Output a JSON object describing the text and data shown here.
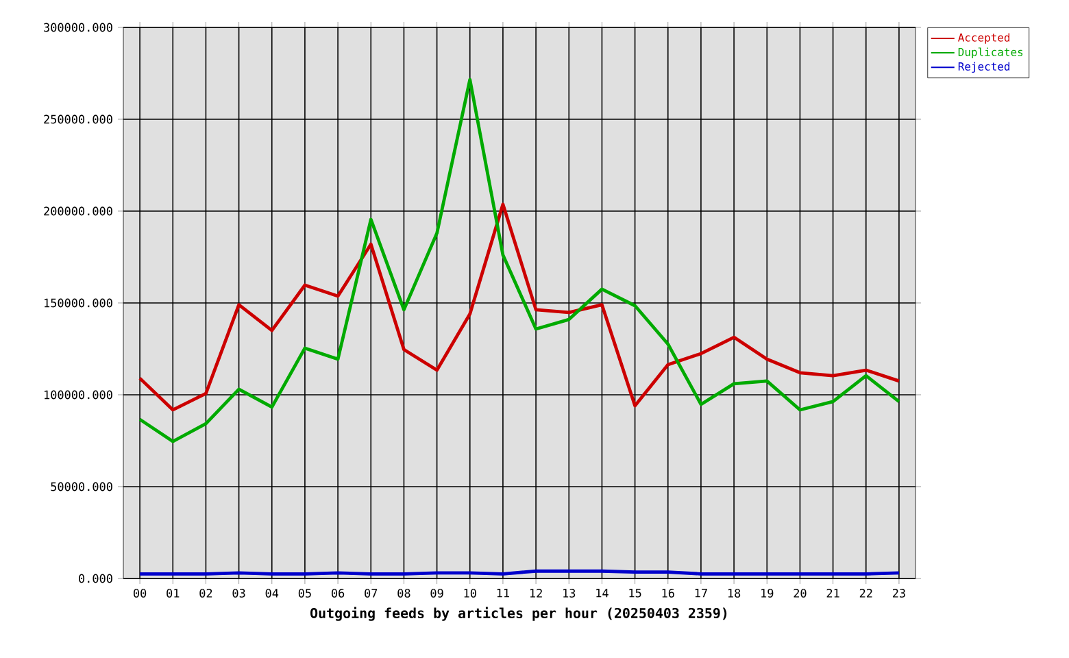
{
  "chart_data": {
    "type": "line",
    "xlabel": "Outgoing feeds by articles per hour (20250403 2359)",
    "categories": [
      "00",
      "01",
      "02",
      "03",
      "04",
      "05",
      "06",
      "07",
      "08",
      "09",
      "10",
      "11",
      "12",
      "13",
      "14",
      "15",
      "16",
      "17",
      "18",
      "19",
      "20",
      "21",
      "22",
      "23"
    ],
    "series": [
      {
        "name": "Accepted",
        "color": "#cc0000",
        "values": [
          109000,
          91800,
          100700,
          149000,
          135000,
          159700,
          153700,
          182000,
          124600,
          113400,
          144000,
          203700,
          146300,
          144800,
          149000,
          94000,
          116400,
          122400,
          131300,
          119400,
          112000,
          110400,
          113400,
          107500
        ]
      },
      {
        "name": "Duplicates",
        "color": "#00aa00",
        "values": [
          86600,
          74600,
          84300,
          103000,
          93300,
          125400,
          119400,
          195500,
          146300,
          188000,
          271600,
          176100,
          135800,
          141000,
          157500,
          148500,
          127600,
          94800,
          106000,
          107500,
          91800,
          96300,
          110400,
          96300
        ]
      },
      {
        "name": "Rejected",
        "color": "#0000cc",
        "values": [
          2500,
          2500,
          2500,
          3000,
          2500,
          2500,
          3000,
          2500,
          2500,
          3000,
          3000,
          2500,
          4000,
          4000,
          4000,
          3500,
          3500,
          2500,
          2500,
          2500,
          2500,
          2500,
          2500,
          3000
        ]
      }
    ],
    "ylim": [
      0,
      300000
    ],
    "yticks": [
      {
        "value": 0,
        "label": "0.000"
      },
      {
        "value": 50000,
        "label": "50000.000"
      },
      {
        "value": 100000,
        "label": "100000.000"
      },
      {
        "value": 150000,
        "label": "150000.000"
      },
      {
        "value": 200000,
        "label": "200000.000"
      },
      {
        "value": 250000,
        "label": "250000.000"
      },
      {
        "value": 300000,
        "label": "300000.000"
      }
    ],
    "grid": true,
    "legend": "top right",
    "marker": "none",
    "line_style": "solid"
  }
}
